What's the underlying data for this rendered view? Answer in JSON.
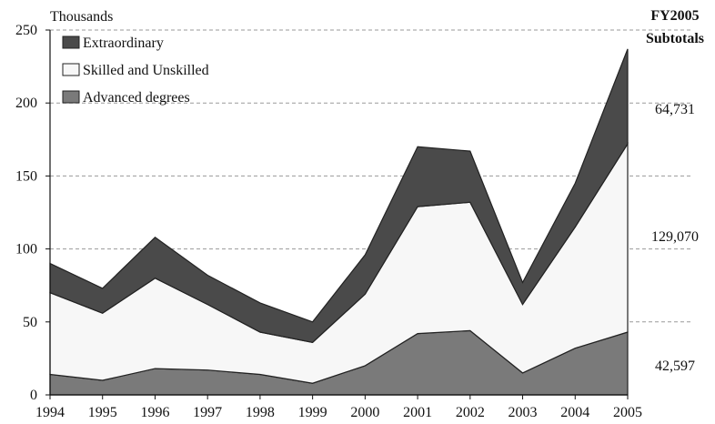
{
  "chart_data": {
    "type": "area",
    "stacked": true,
    "units_label": "Thousands",
    "x": [
      "1994",
      "1995",
      "1996",
      "1997",
      "1998",
      "1999",
      "2000",
      "2001",
      "2002",
      "2003",
      "2004",
      "2005"
    ],
    "ylim": [
      0,
      250
    ],
    "yticks": [
      0,
      50,
      100,
      150,
      200,
      250
    ],
    "grid": "dashed horizontal",
    "legend_position": "top-left",
    "series": [
      {
        "name": "Advanced degrees",
        "values": [
          14,
          10,
          18,
          17,
          14,
          8,
          20,
          42,
          44,
          15,
          32,
          43
        ],
        "color": "#7a7a7a"
      },
      {
        "name": "Skilled and Unskilled",
        "values": [
          56,
          46,
          62,
          45,
          29,
          28,
          49,
          87,
          88,
          47,
          83,
          129
        ],
        "color": "#f7f7f7"
      },
      {
        "name": "Extraordinary",
        "values": [
          20,
          17,
          28,
          20,
          20,
          14,
          27,
          41,
          35,
          15,
          30,
          65
        ],
        "color": "#4a4a4a"
      }
    ],
    "legend_order": [
      "Extraordinary",
      "Skilled and Unskilled",
      "Advanced degrees"
    ],
    "subtotals": {
      "title_line1": "FY2005",
      "title_line2": "Subtotals",
      "values": [
        "64,731",
        "129,070",
        "42,597"
      ]
    }
  }
}
